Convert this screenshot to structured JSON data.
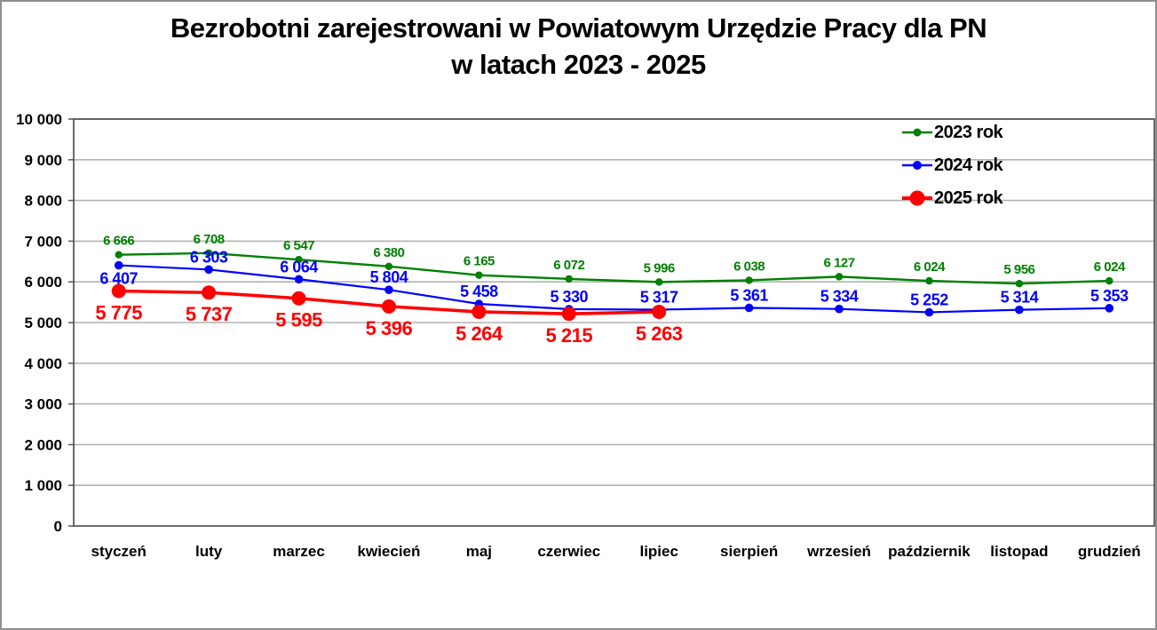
{
  "chart_data": {
    "type": "line",
    "title": "Bezrobotni zarejestrowani w Powiatowym Urzędzie Pracy dla PN",
    "subtitle": "w latach 2023 - 2025",
    "categories": [
      "styczeń",
      "luty",
      "marzec",
      "kwiecień",
      "maj",
      "czerwiec",
      "lipiec",
      "sierpień",
      "wrzesień",
      "październik",
      "listopad",
      "grudzień"
    ],
    "series": [
      {
        "name": "2023 rok",
        "color": "#008000",
        "values": [
          6666,
          6708,
          6547,
          6380,
          6165,
          6072,
          5996,
          6038,
          6127,
          6024,
          5956,
          6024
        ],
        "label_position": "above"
      },
      {
        "name": "2024 rok",
        "color": "#0000ff",
        "values": [
          6407,
          6303,
          6064,
          5804,
          5458,
          5330,
          5317,
          5361,
          5334,
          5252,
          5314,
          5353
        ],
        "label_position": "above",
        "label_position_overrides": {
          "0": "below"
        }
      },
      {
        "name": "2025 rok",
        "color": "#ff0000",
        "values": [
          5775,
          5737,
          5595,
          5396,
          5264,
          5215,
          5263
        ],
        "label_position": "below"
      }
    ],
    "ylim": [
      0,
      10000
    ],
    "ytick_step": 1000,
    "ytick_labels": [
      "0",
      "1 000",
      "2 000",
      "3 000",
      "4 000",
      "5 000",
      "6 000",
      "7 000",
      "8 000",
      "9 000",
      "10 000"
    ],
    "grid": true,
    "legend_position": "top-right",
    "number_format": "space-thousands",
    "colors": {
      "gridline": "#b2b2b2",
      "axis": "#595959",
      "frame_border": "#8f8f8f",
      "text": "#000000"
    }
  }
}
